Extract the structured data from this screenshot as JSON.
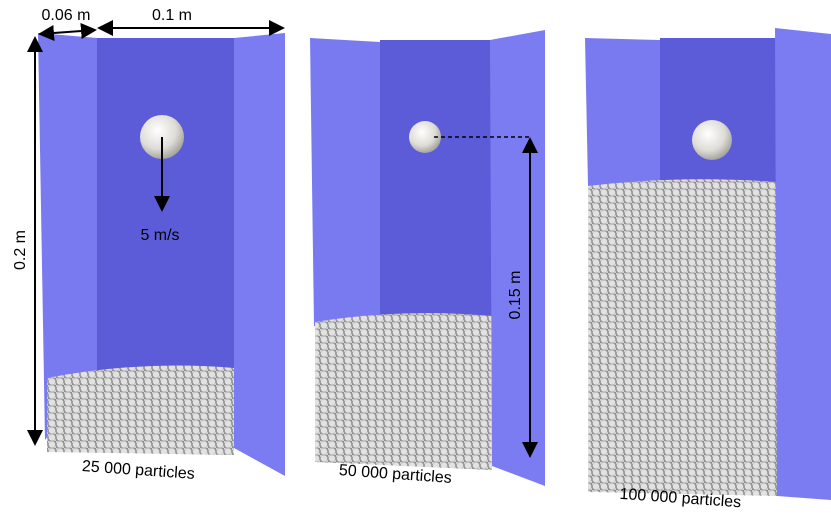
{
  "dimensions": {
    "depth": "0.06 m",
    "width": "0.1 m",
    "height": "0.2 m",
    "drop_height": "0.15 m",
    "velocity": "5 m/s"
  },
  "panels": [
    {
      "label": "25 000 particles"
    },
    {
      "label": "50 000 particles"
    },
    {
      "label": "100 000 particles"
    }
  ]
}
